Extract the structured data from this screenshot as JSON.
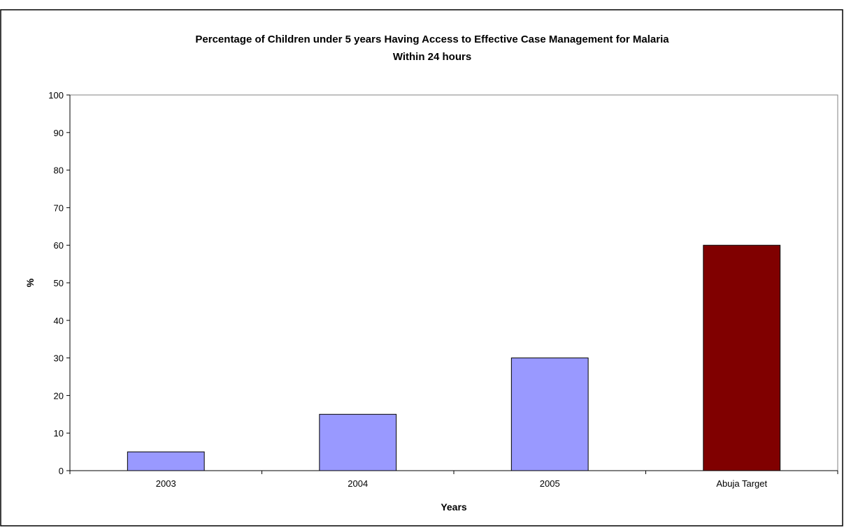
{
  "chart_data": {
    "type": "bar",
    "title_lines": [
      "Percentage of Children under 5 years Having Access to Effective Case  Management for Malaria",
      "Within 24 hours"
    ],
    "xlabel": "Years",
    "ylabel": "%",
    "ylim": [
      0,
      100
    ],
    "yticks": [
      0,
      10,
      20,
      30,
      40,
      50,
      60,
      70,
      80,
      90,
      100
    ],
    "categories": [
      "2003",
      "2004",
      "2005",
      "Abuja Target"
    ],
    "values": [
      5,
      15,
      30,
      60
    ],
    "bar_colors": [
      "#9999ff",
      "#9999ff",
      "#9999ff",
      "#800000"
    ],
    "grid": false,
    "legend": "none"
  }
}
